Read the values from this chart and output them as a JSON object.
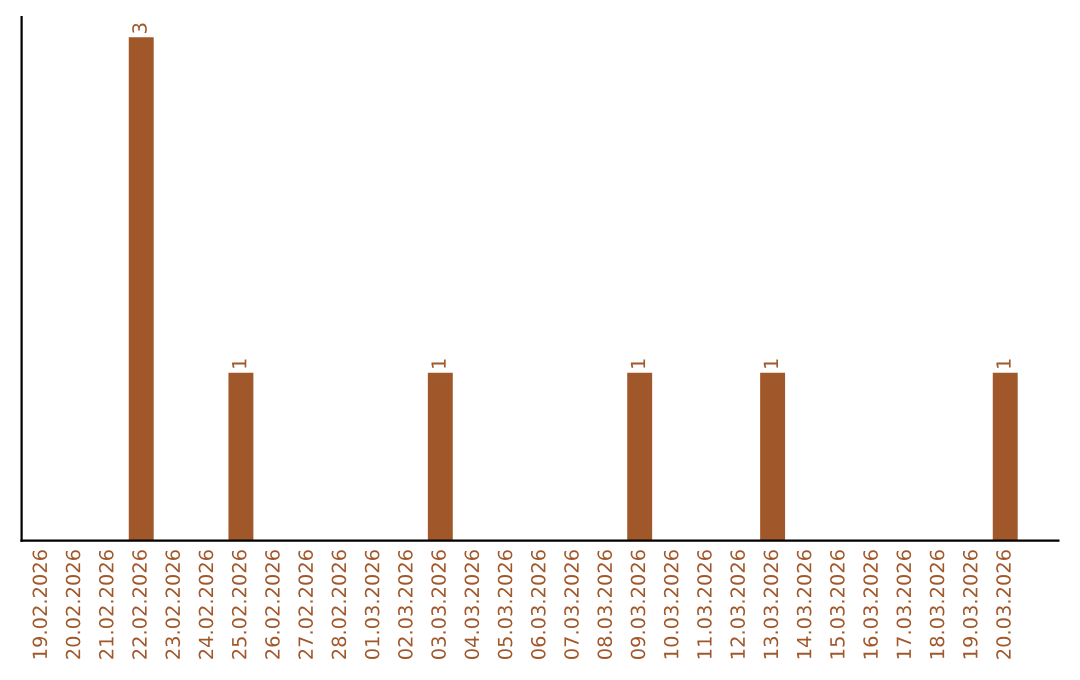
{
  "chart_data": {
    "type": "bar",
    "categories": [
      "19.02.2026",
      "20.02.2026",
      "21.02.2026",
      "22.02.2026",
      "23.02.2026",
      "24.02.2026",
      "25.02.2026",
      "26.02.2026",
      "27.02.2026",
      "28.02.2026",
      "01.03.2026",
      "02.03.2026",
      "03.03.2026",
      "04.03.2026",
      "05.03.2026",
      "06.03.2026",
      "07.03.2026",
      "08.03.2026",
      "09.03.2026",
      "10.03.2026",
      "11.03.2026",
      "12.03.2026",
      "13.03.2026",
      "14.03.2026",
      "15.03.2026",
      "16.03.2026",
      "17.03.2026",
      "18.03.2026",
      "19.03.2026",
      "20.03.2026"
    ],
    "values": [
      0,
      0,
      0,
      3,
      0,
      0,
      1,
      0,
      0,
      0,
      0,
      0,
      1,
      0,
      0,
      0,
      0,
      0,
      1,
      0,
      0,
      0,
      1,
      0,
      0,
      0,
      0,
      0,
      0,
      1
    ],
    "value_labels": [
      null,
      null,
      null,
      "3",
      null,
      null,
      "1",
      null,
      null,
      null,
      null,
      null,
      "1",
      null,
      null,
      null,
      null,
      null,
      "1",
      null,
      null,
      null,
      "1",
      null,
      null,
      null,
      null,
      null,
      null,
      "1"
    ],
    "color": "#a0572a",
    "grid": false,
    "tick_labels": "x",
    "legend": false
  }
}
